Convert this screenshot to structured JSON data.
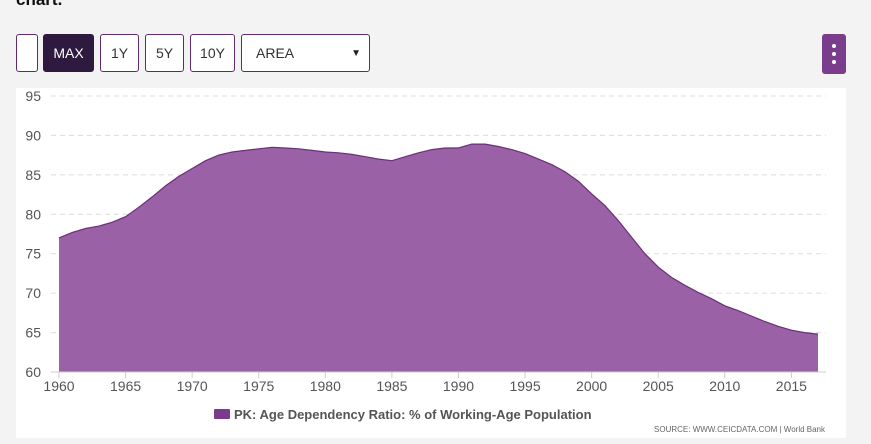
{
  "header": {
    "cut_title": "chart."
  },
  "toolbar": {
    "blank_label": "",
    "buttons": [
      {
        "label": "MAX",
        "active": true
      },
      {
        "label": "1Y",
        "active": false
      },
      {
        "label": "5Y",
        "active": false
      },
      {
        "label": "10Y",
        "active": false
      }
    ],
    "chart_type_select": "AREA"
  },
  "menu": {
    "icon": "vertical-dots-icon"
  },
  "colors": {
    "area_fill": "#9b61a6",
    "area_stroke": "#6b2f7a",
    "legend_swatch": "#7b3a8c",
    "accent": "#2e1a3f"
  },
  "source": {
    "text": "SOURCE: WWW.CEICDATA.COM | World Bank"
  },
  "chart_data": {
    "type": "area",
    "legend": [
      "PK: Age Dependency Ratio: % of Working-Age Population"
    ],
    "legend_position": "bottom",
    "grid": true,
    "ylim": [
      60,
      95
    ],
    "yticks": [
      95,
      90,
      85,
      80,
      75,
      70,
      65,
      60
    ],
    "xlim": [
      1960,
      2017
    ],
    "xticks": [
      1960,
      1965,
      1970,
      1975,
      1980,
      1985,
      1990,
      1995,
      2000,
      2005,
      2010,
      2015
    ],
    "x": [
      1960,
      1961,
      1962,
      1963,
      1964,
      1965,
      1966,
      1967,
      1968,
      1969,
      1970,
      1971,
      1972,
      1973,
      1974,
      1975,
      1976,
      1977,
      1978,
      1979,
      1980,
      1981,
      1982,
      1983,
      1984,
      1985,
      1986,
      1987,
      1988,
      1989,
      1990,
      1991,
      1992,
      1993,
      1994,
      1995,
      1996,
      1997,
      1998,
      1999,
      2000,
      2001,
      2002,
      2003,
      2004,
      2005,
      2006,
      2007,
      2008,
      2009,
      2010,
      2011,
      2012,
      2013,
      2014,
      2015,
      2016,
      2017
    ],
    "series": [
      {
        "name": "PK: Age Dependency Ratio: % of Working-Age Population",
        "values": [
          77.0,
          77.7,
          78.2,
          78.5,
          79.0,
          79.7,
          80.9,
          82.2,
          83.6,
          84.8,
          85.8,
          86.8,
          87.5,
          87.9,
          88.1,
          88.3,
          88.5,
          88.4,
          88.3,
          88.1,
          87.9,
          87.8,
          87.6,
          87.3,
          87.0,
          86.8,
          87.3,
          87.8,
          88.2,
          88.4,
          88.4,
          88.9,
          88.9,
          88.6,
          88.2,
          87.7,
          87.0,
          86.3,
          85.4,
          84.2,
          82.6,
          81.1,
          79.2,
          77.1,
          75.0,
          73.3,
          72.0,
          71.0,
          70.1,
          69.3,
          68.4,
          67.8,
          67.1,
          66.4,
          65.8,
          65.3,
          65.0,
          64.8
        ]
      }
    ]
  }
}
